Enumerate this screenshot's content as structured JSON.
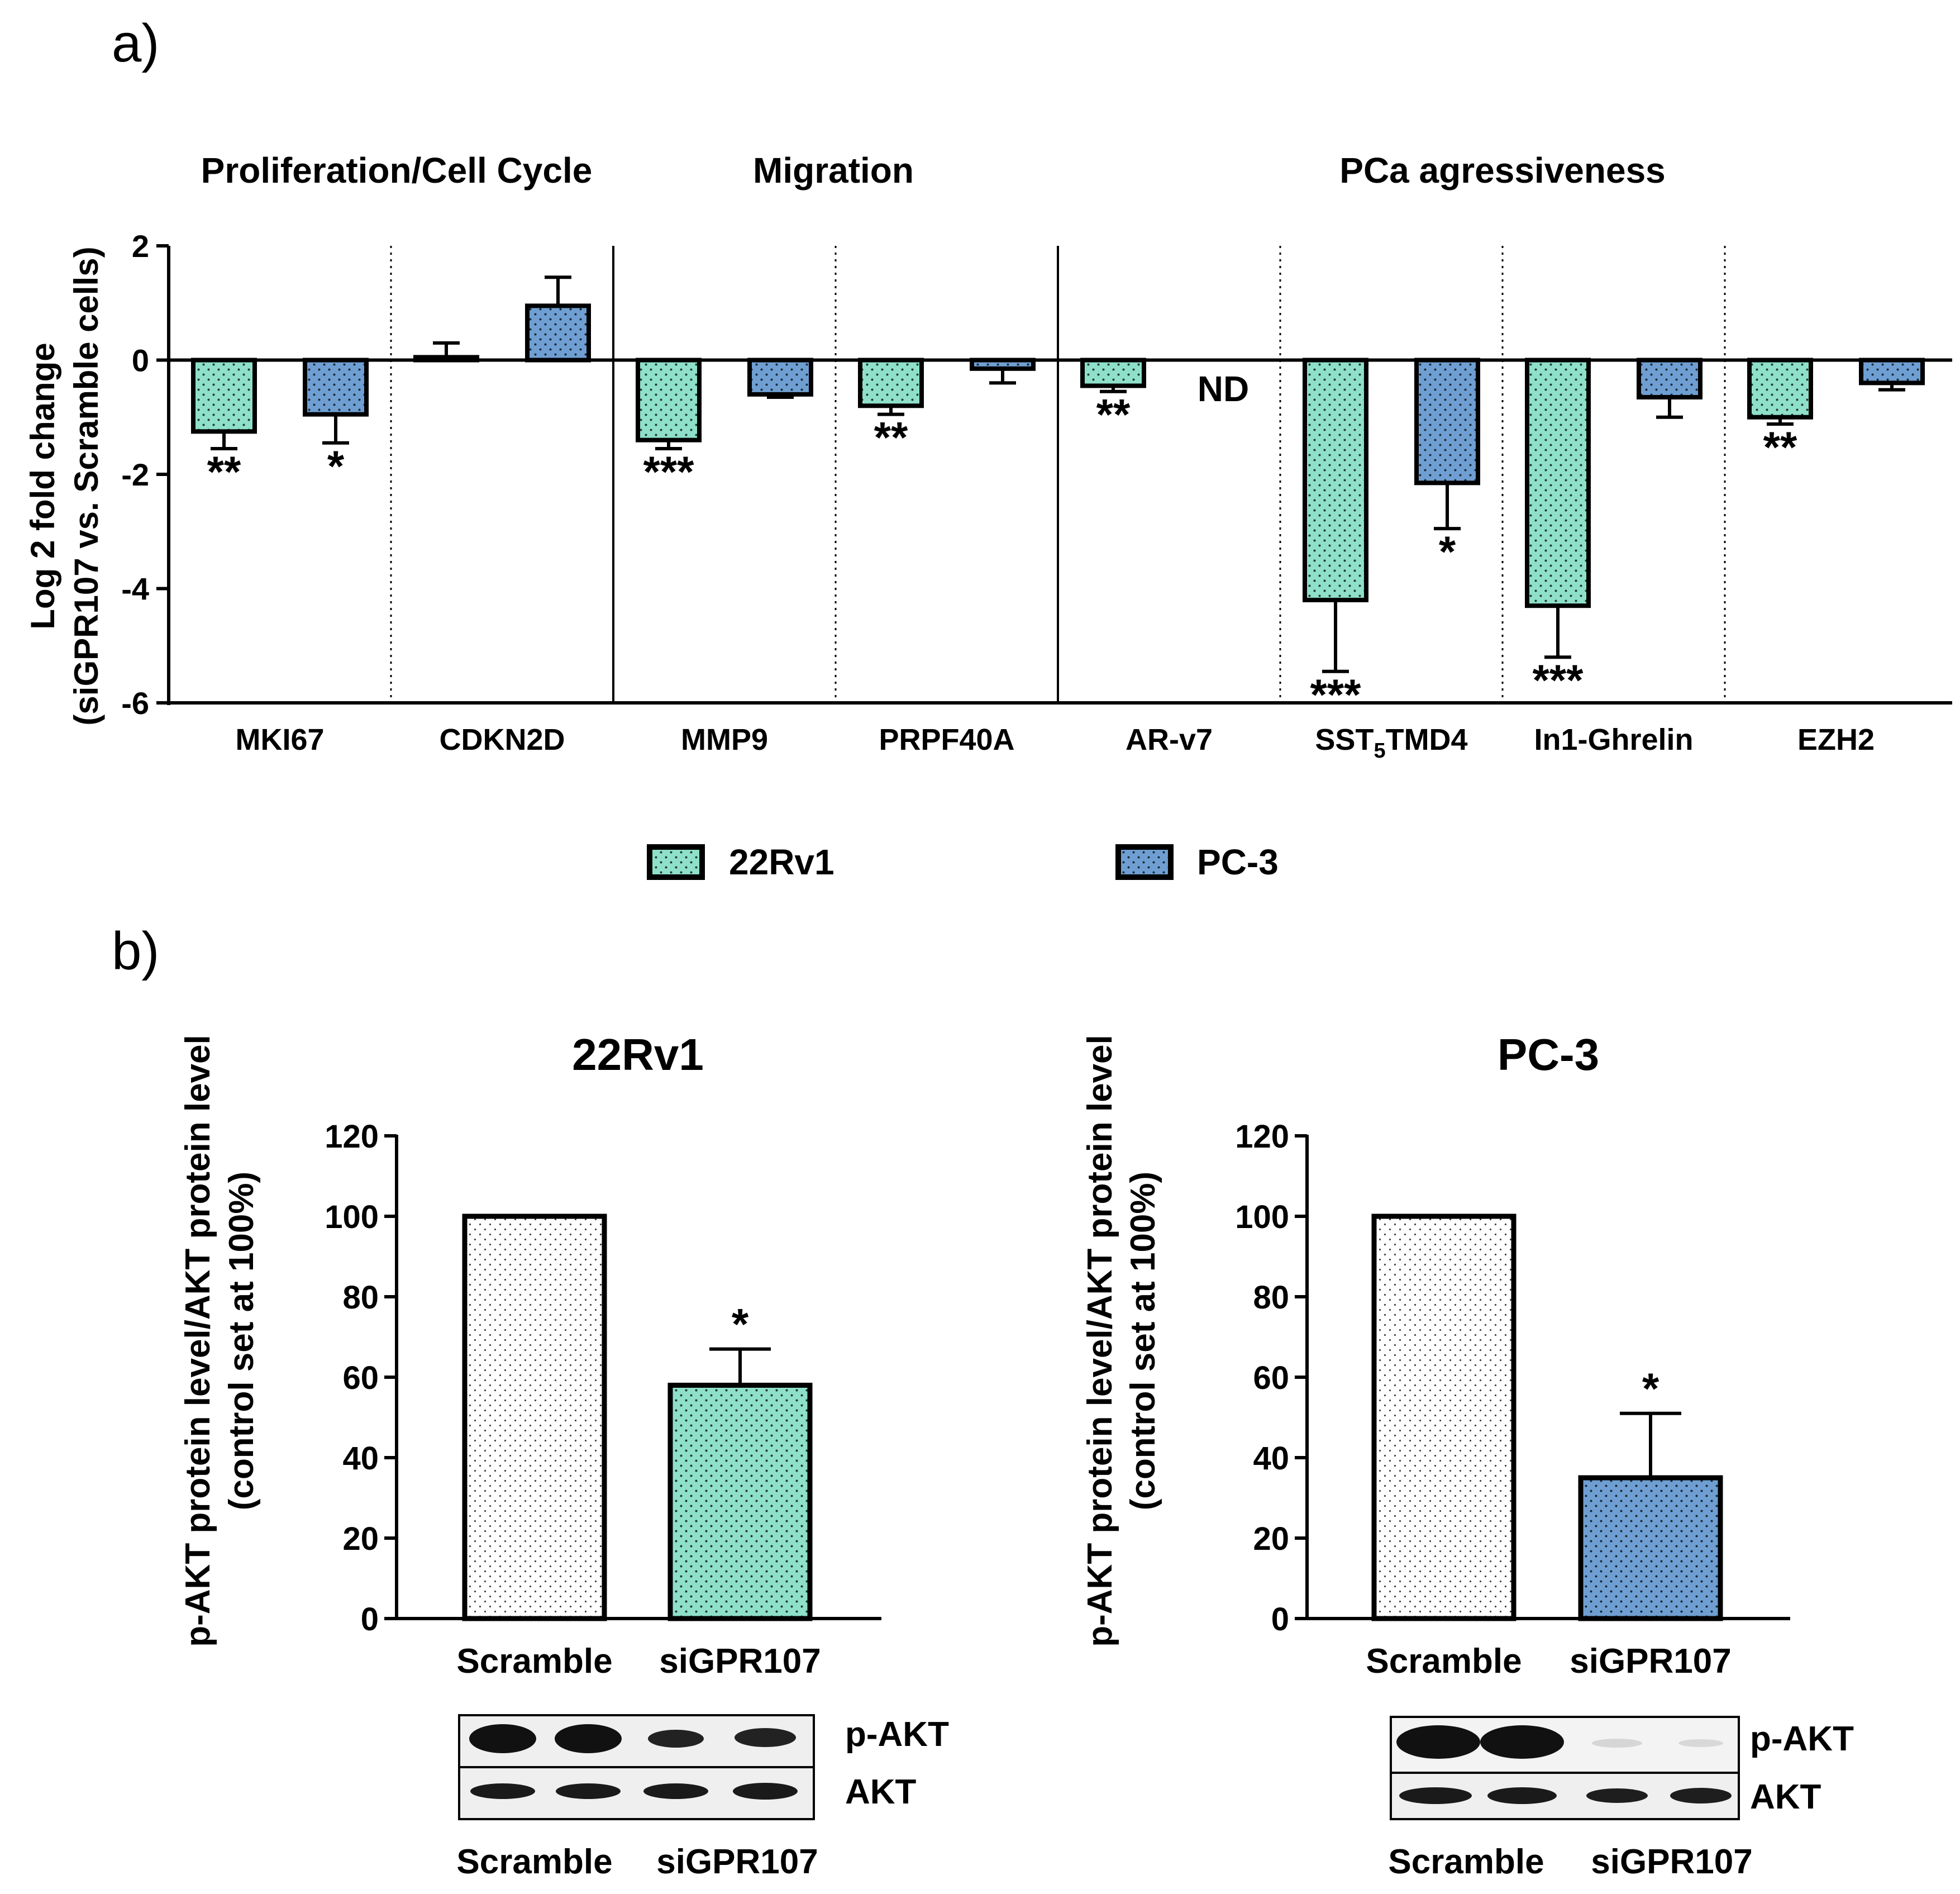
{
  "colors": {
    "c22rv1": "#8fe0c8",
    "cpc3": "#6f9fd2",
    "scramble": "#ffffff",
    "dots": "#1f3a3a",
    "ink": "#000000"
  },
  "panel_a": {
    "label": "a)",
    "groups": [
      {
        "title": "Proliferation/Cell Cycle"
      },
      {
        "title": "Migration"
      },
      {
        "title": "PCa agressiveness"
      }
    ],
    "nd_label": "ND",
    "legend": [
      "22Rv1",
      "PC-3"
    ]
  },
  "panel_b": {
    "label": "b)"
  },
  "blots": [
    {
      "row_labels": [
        "p-AKT",
        "AKT"
      ],
      "lane_group_labels": [
        "Scramble",
        "siGPR107"
      ]
    },
    {
      "row_labels": [
        "p-AKT",
        "AKT"
      ],
      "lane_group_labels": [
        "Scramble",
        "siGPR107"
      ]
    }
  ],
  "chart_data": [
    {
      "type": "bar",
      "ylabel": "Log 2 fold change",
      "ylabel2": "(siGPR107 vs. Scramble cells)",
      "ylim": [
        -6,
        2
      ],
      "yticks": [
        "-6",
        "-4",
        "-2",
        "0",
        "2"
      ],
      "categories": [
        "MKI67",
        "CDKN2D",
        "MMP9",
        "PRPF40A",
        "AR-v7",
        "SST5TMD4",
        "In1-Ghrelin",
        "EZH2"
      ],
      "category_display": [
        {
          "main": "MKI67"
        },
        {
          "main": "CDKN2D"
        },
        {
          "main": "MMP9"
        },
        {
          "main": "PRPF40A"
        },
        {
          "main": "AR-v7"
        },
        {
          "main": "SST",
          "sub": "5",
          "rest": "TMD4"
        },
        {
          "main": "In1-Ghrelin"
        },
        {
          "main": "EZH2"
        }
      ],
      "series": [
        {
          "name": "22Rv1",
          "values": [
            -1.25,
            0.05,
            -1.4,
            -0.8,
            -0.45,
            -4.2,
            -4.3,
            -1.0
          ],
          "errors": [
            0.3,
            0.25,
            0.15,
            0.15,
            0.1,
            1.25,
            0.9,
            0.12
          ],
          "significance": [
            "**",
            "",
            "***",
            "**",
            "**",
            "***",
            "***",
            "**"
          ]
        },
        {
          "name": "PC-3",
          "values": [
            -0.95,
            0.95,
            -0.6,
            -0.15,
            null,
            -2.15,
            -0.65,
            -0.4
          ],
          "errors": [
            0.5,
            0.5,
            0.05,
            0.25,
            null,
            0.8,
            0.35,
            0.12
          ],
          "significance": [
            "*",
            "",
            "",
            "",
            "ND",
            "*",
            "",
            ""
          ]
        }
      ]
    },
    {
      "type": "bar",
      "title": "22Rv1",
      "ylabel": "p-AKT protein level/AKT protein level",
      "ylabel2": "(control set at 100%)",
      "ylim": [
        0,
        120
      ],
      "yticks": [
        "0",
        "20",
        "40",
        "60",
        "80",
        "100",
        "120"
      ],
      "categories": [
        "Scramble",
        "siGPR107"
      ],
      "values": [
        100,
        58
      ],
      "errors": [
        0,
        9
      ],
      "significance": [
        "",
        "*"
      ]
    },
    {
      "type": "bar",
      "title": "PC-3",
      "ylabel": "p-AKT protein level/AKT protein level",
      "ylabel2": "(control set at 100%)",
      "ylim": [
        0,
        120
      ],
      "yticks": [
        "0",
        "20",
        "40",
        "60",
        "80",
        "100",
        "120"
      ],
      "categories": [
        "Scramble",
        "siGPR107"
      ],
      "values": [
        100,
        35
      ],
      "errors": [
        0,
        16
      ],
      "significance": [
        "",
        "*"
      ]
    }
  ]
}
